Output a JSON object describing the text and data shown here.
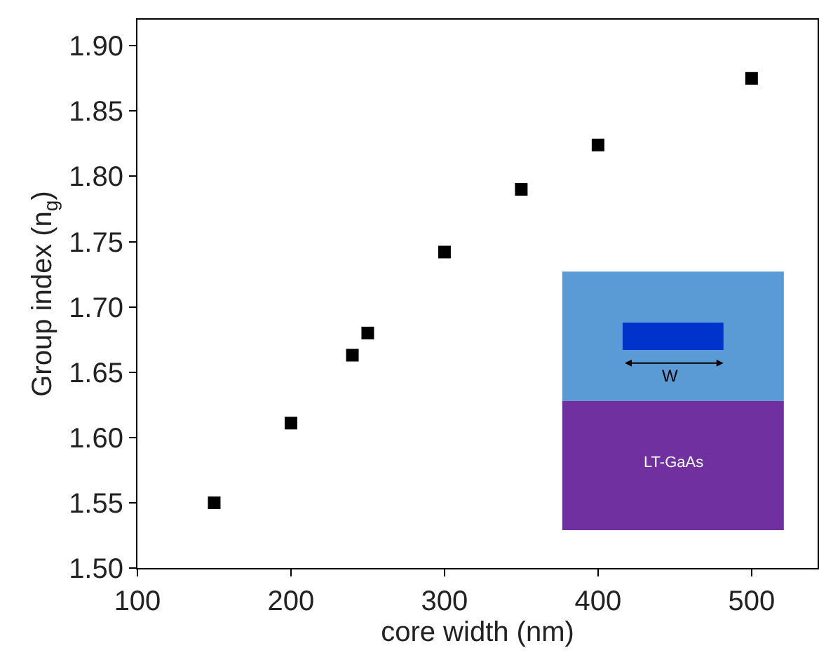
{
  "chart_data": {
    "type": "scatter",
    "xlabel": "core width (nm)",
    "ylabel": "Group index (n$_{g}$)",
    "x": [
      150,
      200,
      240,
      250,
      300,
      350,
      400,
      500
    ],
    "series": [
      {
        "color": "#000000",
        "values": [
          1.55,
          1.611,
          1.663,
          1.68,
          1.742,
          1.79,
          1.824,
          1.875
        ]
      }
    ],
    "xlim": [
      100,
      543
    ],
    "xticks": [
      100,
      200,
      300,
      400,
      500
    ],
    "ylim": [
      1.5,
      1.92
    ],
    "yticks": [
      {
        "value": 1.5,
        "label": "1.50"
      },
      1.55,
      {
        "value": 1.6,
        "label": "1.60"
      },
      1.65,
      {
        "value": 1.7,
        "label": "1.70"
      },
      1.75,
      {
        "value": 1.8,
        "label": "1.80"
      },
      1.85,
      {
        "value": 1.9,
        "label": "1.90"
      }
    ],
    "marker": "square",
    "grid": false,
    "annotations": [
      "W",
      "LT-GaAs"
    ]
  }
}
